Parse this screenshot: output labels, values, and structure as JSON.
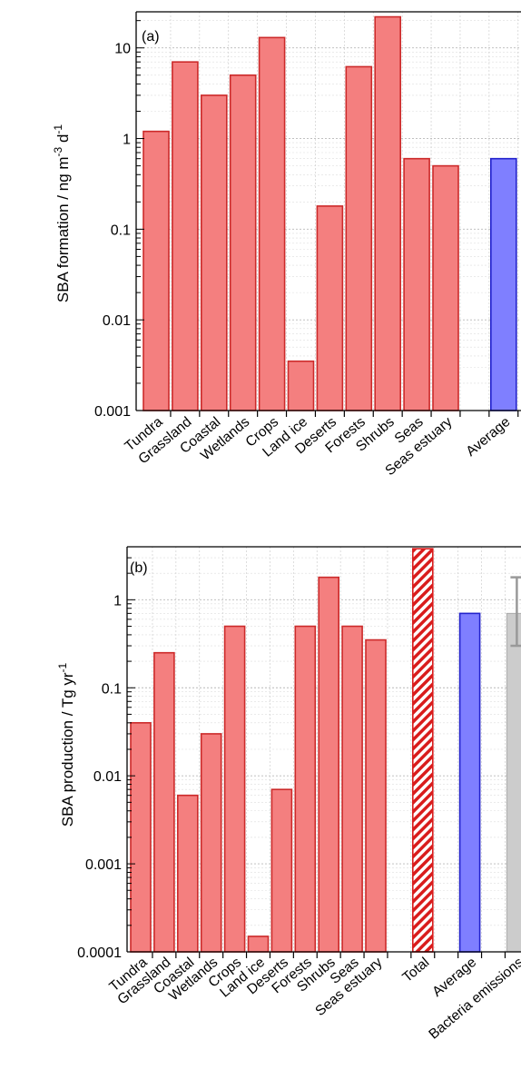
{
  "chart_data": [
    {
      "type": "bar",
      "panel_label": "(a)",
      "ylabel": "SBA formation / ng m",
      "ylabel_sup1": "-3",
      "ylabel_mid": " d",
      "ylabel_sup2": "-1",
      "yscale": "log",
      "ylim": [
        0.001,
        25
      ],
      "yticks": [
        "0.001",
        "0.01",
        "0.1",
        "1",
        "10"
      ],
      "grid": true,
      "categories": [
        "Tundra",
        "Grassland",
        "Coastal",
        "Wetlands",
        "Crops",
        "Land ice",
        "Deserts",
        "Forests",
        "Shrubs",
        "Seas",
        "Seas estuary",
        "",
        "Average"
      ],
      "values": [
        1.2,
        7.0,
        3.0,
        5.0,
        13.0,
        0.0035,
        0.18,
        6.2,
        22.0,
        0.6,
        0.5,
        null,
        0.6
      ],
      "styles": [
        "red",
        "red",
        "red",
        "red",
        "red",
        "red",
        "red",
        "red",
        "red",
        "red",
        "red",
        "none",
        "blue"
      ],
      "colors": {
        "red_fill": "#f47f7f",
        "red_edge": "#cc2a2a",
        "blue_fill": "#7f7fff",
        "blue_edge": "#2222cc"
      }
    },
    {
      "type": "bar",
      "panel_label": "(b)",
      "ylabel": "SBA production / Tg yr",
      "ylabel_sup1": "-1",
      "yscale": "log",
      "ylim": [
        0.0001,
        4
      ],
      "yticks": [
        "0.0001",
        "0.001",
        "0.01",
        "0.1",
        "1"
      ],
      "grid": true,
      "categories": [
        "Tundra",
        "Grassland",
        "Coastal",
        "Wetlands",
        "Crops",
        "Land ice",
        "Deserts",
        "Forests",
        "Shrubs",
        "Seas",
        "Seas estuary",
        "",
        "Total",
        "",
        "Average",
        "",
        "Bacteria emissions"
      ],
      "values": [
        0.04,
        0.25,
        0.006,
        0.03,
        0.5,
        0.00015,
        0.007,
        0.5,
        1.8,
        0.5,
        0.35,
        null,
        3.8,
        null,
        0.7,
        null,
        0.7
      ],
      "styles": [
        "red",
        "red",
        "red",
        "red",
        "red",
        "red",
        "red",
        "red",
        "red",
        "red",
        "red",
        "none",
        "hatch",
        "none",
        "blue",
        "none",
        "grey"
      ],
      "error_bars": {
        "Bacteria emissions": [
          0.3,
          1.8
        ]
      },
      "colors": {
        "red_fill": "#f47f7f",
        "red_edge": "#cc2a2a",
        "blue_fill": "#7f7fff",
        "blue_edge": "#2222cc",
        "hatch": "#d91c1c",
        "grey_fill": "#cccccc",
        "grey_edge": "#aaaaaa",
        "errorbar": "#999999"
      }
    }
  ]
}
